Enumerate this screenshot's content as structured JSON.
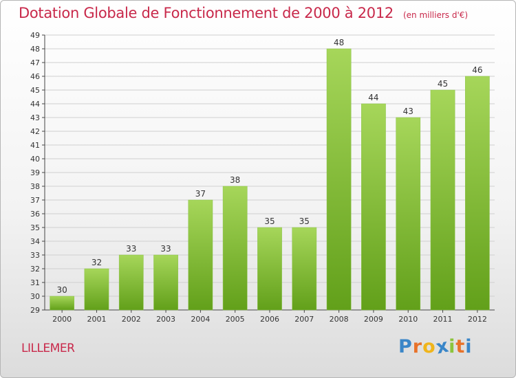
{
  "header": {
    "title": "Dotation Globale de Fonctionnement de 2000 à 2012",
    "unit_note": "(en milliers d'€)"
  },
  "footer": {
    "commune": "LILLEMER",
    "logo": {
      "letters": [
        "P",
        "r",
        "o",
        "x",
        "i",
        "t",
        "i"
      ],
      "colors": [
        "#3a86c8",
        "#e8722a",
        "#f0b51c",
        "#3a86c8",
        "#8cc43c",
        "#e8722a",
        "#3a86c8"
      ]
    }
  },
  "colors": {
    "bar_light": "#a6d65a",
    "bar_dark": "#62a01a",
    "axis": "#444444",
    "grid": "#cfcfcf",
    "title": "#c8284a"
  },
  "chart_data": {
    "type": "bar",
    "title": "Dotation Globale de Fonctionnement de 2000 à 2012",
    "subtitle": "(en milliers d'€)",
    "xlabel": "",
    "ylabel": "",
    "categories": [
      "2000",
      "2001",
      "2002",
      "2003",
      "2004",
      "2005",
      "2006",
      "2007",
      "2008",
      "2009",
      "2010",
      "2011",
      "2012"
    ],
    "values": [
      30,
      32,
      33,
      33,
      37,
      38,
      35,
      35,
      48,
      44,
      43,
      45,
      46
    ],
    "ylim": [
      29,
      49
    ],
    "yticks": [
      29,
      30,
      31,
      32,
      33,
      34,
      35,
      36,
      37,
      38,
      39,
      40,
      41,
      42,
      43,
      44,
      45,
      46,
      47,
      48,
      49
    ],
    "grid": true,
    "data_labels": true,
    "legend": "none"
  }
}
